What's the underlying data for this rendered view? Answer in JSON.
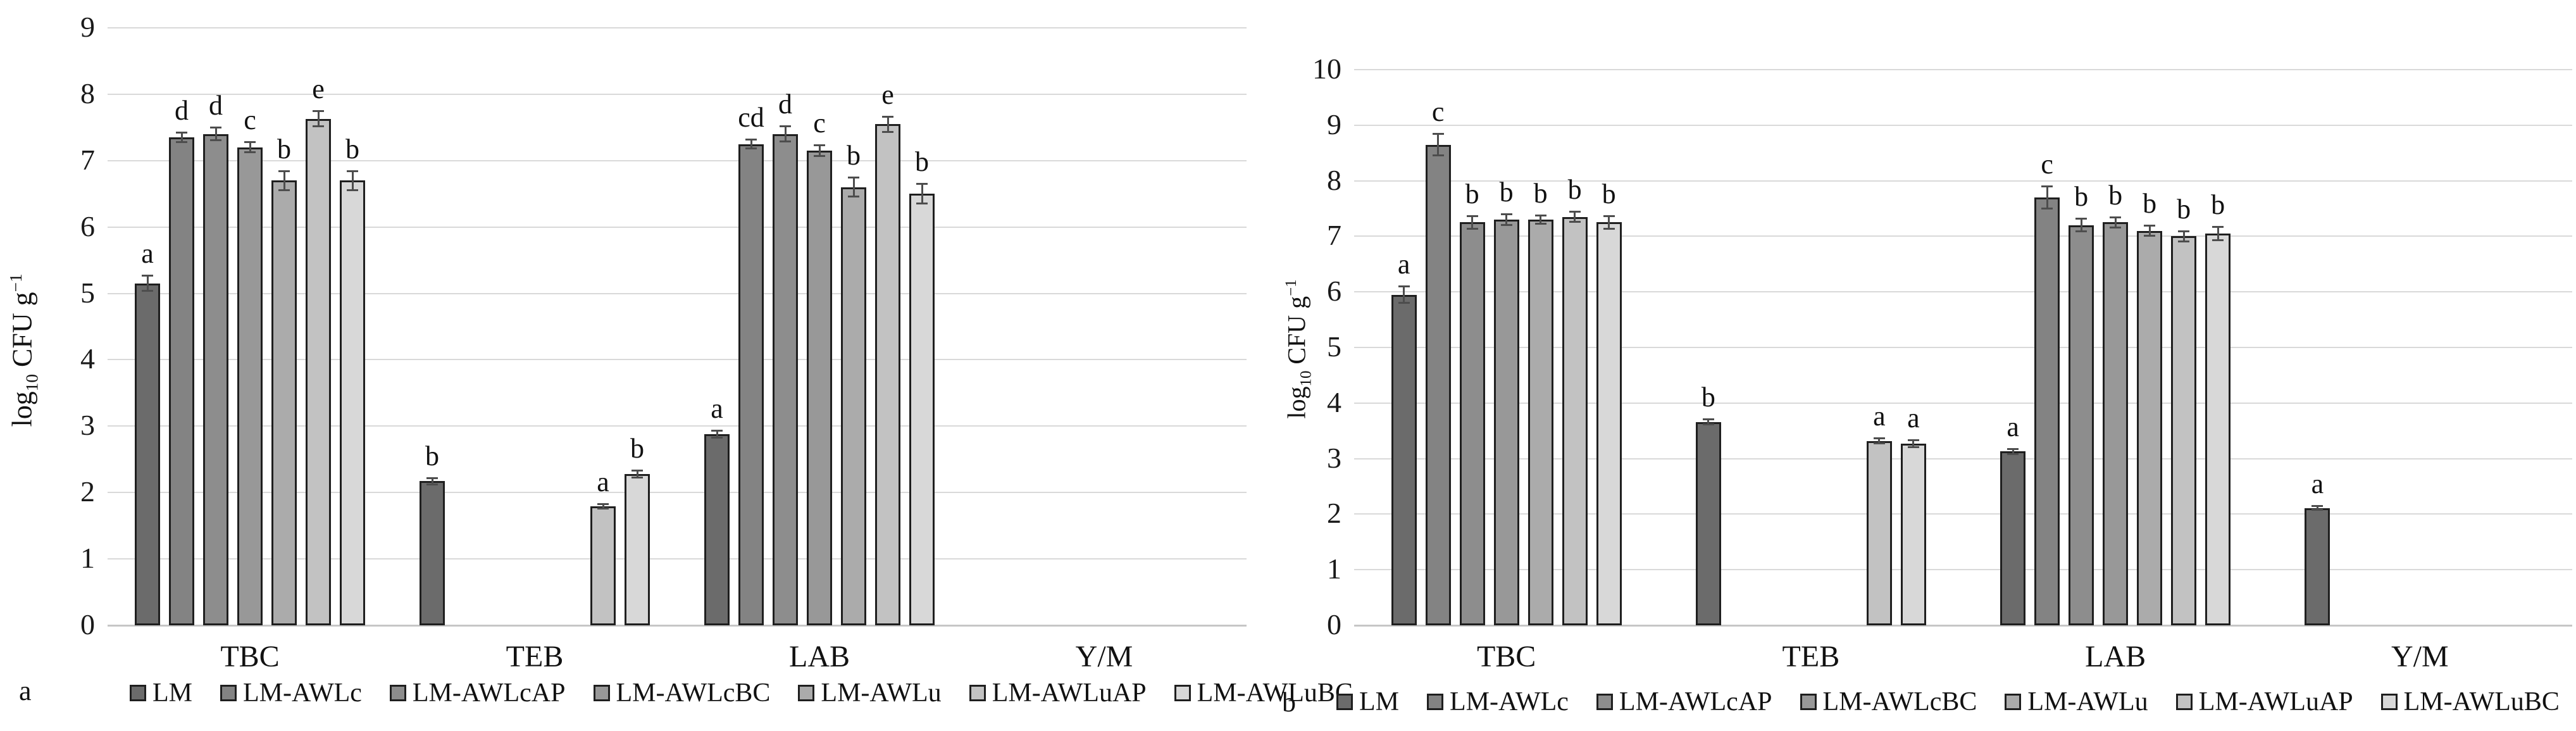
{
  "figure": {
    "panel_letters": [
      "a",
      "b"
    ]
  },
  "chart_data": [
    {
      "panel_letter": "a",
      "type": "bar",
      "title": "",
      "xlabel": "",
      "ylabel": {
        "pre": "log",
        "sub": "10",
        "mid": " CFU g",
        "sup": "−1"
      },
      "ylim": [
        0,
        9
      ],
      "ytick_step": 1,
      "grid": true,
      "legend_position": "bottom",
      "categories": [
        "TBC",
        "TEB",
        "LAB",
        "Y/M"
      ],
      "series": [
        {
          "name": "LM",
          "color": "#6b6b6b",
          "values": [
            5.15,
            2.17,
            2.88,
            null
          ],
          "errors": [
            0.12,
            0.05,
            0.06,
            null
          ],
          "letters": [
            "a",
            "b",
            "a",
            ""
          ]
        },
        {
          "name": "LM-AWLc",
          "color": "#838383",
          "values": [
            7.35,
            null,
            7.25,
            null
          ],
          "errors": [
            0.08,
            null,
            0.07,
            null
          ],
          "letters": [
            "d",
            "",
            "cd",
            ""
          ]
        },
        {
          "name": "LM-AWLcAP",
          "color": "#8d8d8d",
          "values": [
            7.4,
            null,
            7.4,
            null
          ],
          "errors": [
            0.1,
            null,
            0.12,
            null
          ],
          "letters": [
            "d",
            "",
            "d",
            ""
          ]
        },
        {
          "name": "LM-AWLcBC",
          "color": "#989898",
          "values": [
            7.2,
            null,
            7.15,
            null
          ],
          "errors": [
            0.08,
            null,
            0.09,
            null
          ],
          "letters": [
            "c",
            "",
            "c",
            ""
          ]
        },
        {
          "name": "LM-AWLu",
          "color": "#ababab",
          "values": [
            6.7,
            null,
            6.6,
            null
          ],
          "errors": [
            0.15,
            null,
            0.15,
            null
          ],
          "letters": [
            "b",
            "",
            "b",
            ""
          ]
        },
        {
          "name": "LM-AWLuAP",
          "color": "#c2c2c2",
          "values": [
            7.63,
            1.79,
            7.55,
            null
          ],
          "errors": [
            0.12,
            0.04,
            0.12,
            null
          ],
          "letters": [
            "e",
            "a",
            "e",
            ""
          ]
        },
        {
          "name": "LM-AWLuBC",
          "color": "#d8d8d8",
          "values": [
            6.7,
            2.28,
            6.5,
            null
          ],
          "errors": [
            0.15,
            0.06,
            0.15,
            null
          ],
          "letters": [
            "b",
            "b",
            "b",
            ""
          ]
        }
      ]
    },
    {
      "panel_letter": "b",
      "type": "bar",
      "title": "",
      "xlabel": "",
      "ylabel": {
        "pre": "log",
        "sub": "10",
        "mid": " CFU g",
        "sup": "−1"
      },
      "ylim": [
        0,
        10
      ],
      "ytick_step": 1,
      "grid": true,
      "legend_position": "bottom",
      "categories": [
        "TBC",
        "TEB",
        "LAB",
        "Y/M"
      ],
      "series": [
        {
          "name": "LM",
          "color": "#6b6b6b",
          "values": [
            5.95,
            3.66,
            3.13,
            2.11
          ],
          "errors": [
            0.15,
            0.05,
            0.05,
            0.04
          ],
          "letters": [
            "a",
            "b",
            "a",
            "a"
          ]
        },
        {
          "name": "LM-AWLc",
          "color": "#838383",
          "values": [
            8.65,
            null,
            7.7,
            null
          ],
          "errors": [
            0.2,
            null,
            0.2,
            null
          ],
          "letters": [
            "c",
            "",
            "c",
            ""
          ]
        },
        {
          "name": "LM-AWLcAP",
          "color": "#8d8d8d",
          "values": [
            7.25,
            null,
            7.2,
            null
          ],
          "errors": [
            0.12,
            null,
            0.12,
            null
          ],
          "letters": [
            "b",
            "",
            "b",
            ""
          ]
        },
        {
          "name": "LM-AWLcBC",
          "color": "#989898",
          "values": [
            7.3,
            null,
            7.25,
            null
          ],
          "errors": [
            0.1,
            null,
            0.1,
            null
          ],
          "letters": [
            "b",
            "",
            "b",
            ""
          ]
        },
        {
          "name": "LM-AWLu",
          "color": "#ababab",
          "values": [
            7.3,
            null,
            7.1,
            null
          ],
          "errors": [
            0.08,
            null,
            0.1,
            null
          ],
          "letters": [
            "b",
            "",
            "b",
            ""
          ]
        },
        {
          "name": "LM-AWLuAP",
          "color": "#c2c2c2",
          "values": [
            7.35,
            3.32,
            7.0,
            null
          ],
          "errors": [
            0.1,
            0.05,
            0.1,
            null
          ],
          "letters": [
            "b",
            "a",
            "b",
            ""
          ]
        },
        {
          "name": "LM-AWLuBC",
          "color": "#d8d8d8",
          "values": [
            7.25,
            3.27,
            7.05,
            null
          ],
          "errors": [
            0.12,
            0.07,
            0.12,
            null
          ],
          "letters": [
            "b",
            "a",
            "b",
            ""
          ]
        }
      ]
    }
  ]
}
